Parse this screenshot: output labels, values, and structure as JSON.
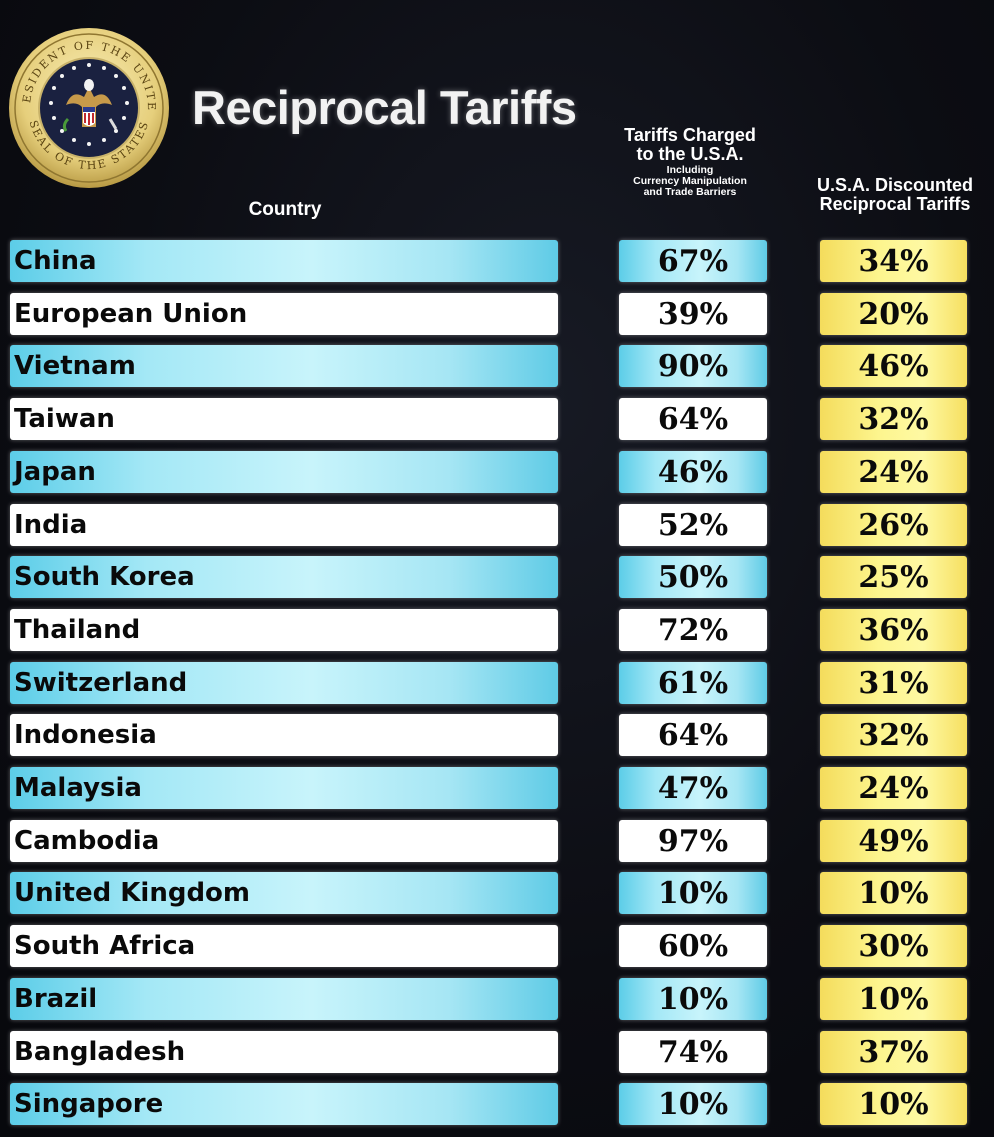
{
  "header": {
    "title": "Reciprocal Tariffs",
    "country_col": "Country",
    "charged_col": {
      "line1": "Tariffs Charged",
      "line2": "to the U.S.A.",
      "line3": "Including",
      "line4": "Currency Manipulation",
      "line5": "and Trade Barriers"
    },
    "discounted_col": {
      "line1": "U.S.A. Discounted",
      "line2": "Reciprocal Tariffs"
    }
  },
  "seal": {
    "text": "SEAL OF THE PRESIDENT OF THE UNITED STATES"
  },
  "colors": {
    "blue_row": "#a4e8f6",
    "white_row": "#ffffff",
    "yellow_cell": "#fdf58e",
    "background": "#0c0d13"
  },
  "chart_data": {
    "type": "table",
    "title": "Reciprocal Tariffs",
    "columns": [
      "Country",
      "Tariffs Charged to the U.S.A. Including Currency Manipulation and Trade Barriers",
      "U.S.A. Discounted Reciprocal Tariffs"
    ],
    "rows": [
      {
        "country": "China",
        "charged": "67%",
        "discounted": "34%"
      },
      {
        "country": "European Union",
        "charged": "39%",
        "discounted": "20%"
      },
      {
        "country": "Vietnam",
        "charged": "90%",
        "discounted": "46%"
      },
      {
        "country": "Taiwan",
        "charged": "64%",
        "discounted": "32%"
      },
      {
        "country": "Japan",
        "charged": "46%",
        "discounted": "24%"
      },
      {
        "country": "India",
        "charged": "52%",
        "discounted": "26%"
      },
      {
        "country": "South Korea",
        "charged": "50%",
        "discounted": "25%"
      },
      {
        "country": "Thailand",
        "charged": "72%",
        "discounted": "36%"
      },
      {
        "country": "Switzerland",
        "charged": "61%",
        "discounted": "31%"
      },
      {
        "country": "Indonesia",
        "charged": "64%",
        "discounted": "32%"
      },
      {
        "country": "Malaysia",
        "charged": "47%",
        "discounted": "24%"
      },
      {
        "country": "Cambodia",
        "charged": "97%",
        "discounted": "49%"
      },
      {
        "country": "United Kingdom",
        "charged": "10%",
        "discounted": "10%"
      },
      {
        "country": "South Africa",
        "charged": "60%",
        "discounted": "30%"
      },
      {
        "country": "Brazil",
        "charged": "10%",
        "discounted": "10%"
      },
      {
        "country": "Bangladesh",
        "charged": "74%",
        "discounted": "37%"
      },
      {
        "country": "Singapore",
        "charged": "10%",
        "discounted": "10%"
      }
    ]
  }
}
